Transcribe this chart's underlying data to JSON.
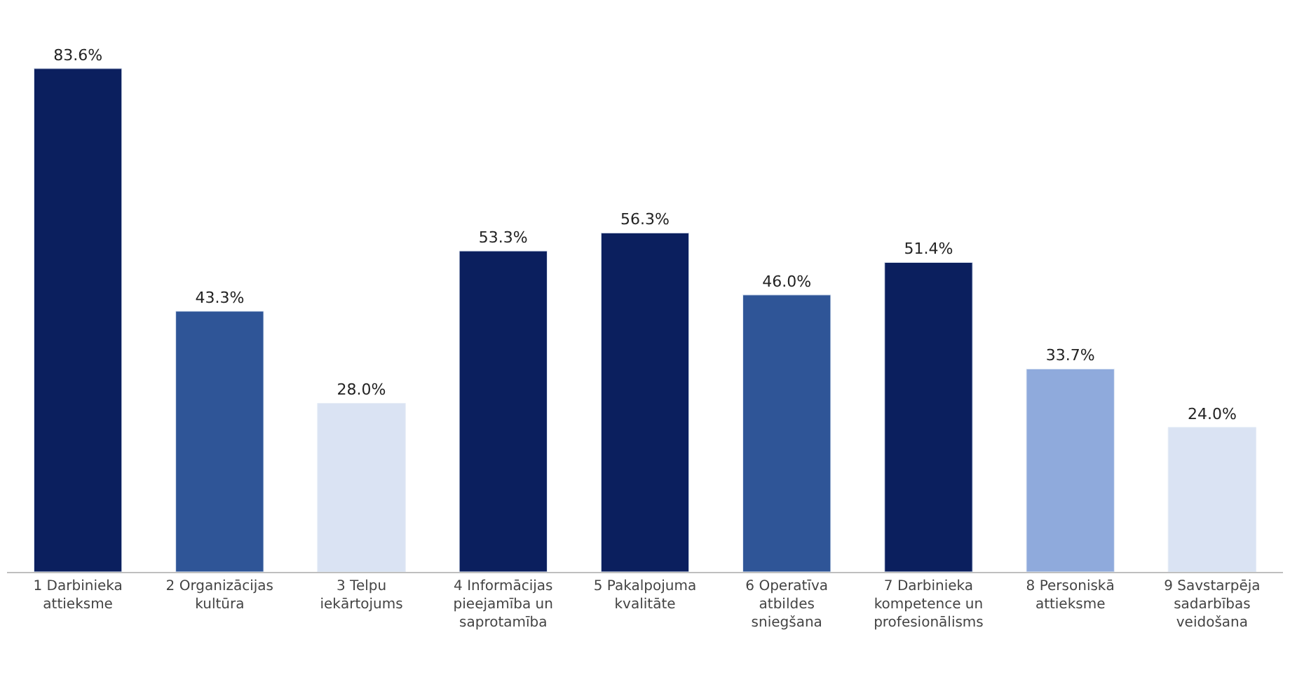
{
  "chart_data": {
    "type": "bar",
    "categories": [
      "1 Darbinieka attieksme",
      "2 Organizācijas kultūra",
      "3 Telpu iekārtojums",
      "4 Informācijas pieejamība un saprotamība",
      "5 Pakalpojuma kvalitāte",
      "6 Operatīva atbildes sniegšana",
      "7 Darbinieka kompetence un profesionālisms",
      "8 Personiskā attieksme",
      "9 Savstarpēja sadarbības veidošana"
    ],
    "values": [
      83.6,
      43.3,
      28.0,
      53.3,
      56.3,
      46.0,
      51.4,
      33.7,
      24.0
    ],
    "value_labels": [
      "83.6%",
      "43.3%",
      "28.0%",
      "53.3%",
      "56.3%",
      "46.0%",
      "51.4%",
      "33.7%",
      "24.0%"
    ],
    "colors": [
      "#0b1f5e",
      "#2f5597",
      "#dae3f3",
      "#0b1f5e",
      "#0b1f5e",
      "#2f5597",
      "#0b1f5e",
      "#8faadc",
      "#dae3f3"
    ],
    "tick_labels": "x"
  }
}
